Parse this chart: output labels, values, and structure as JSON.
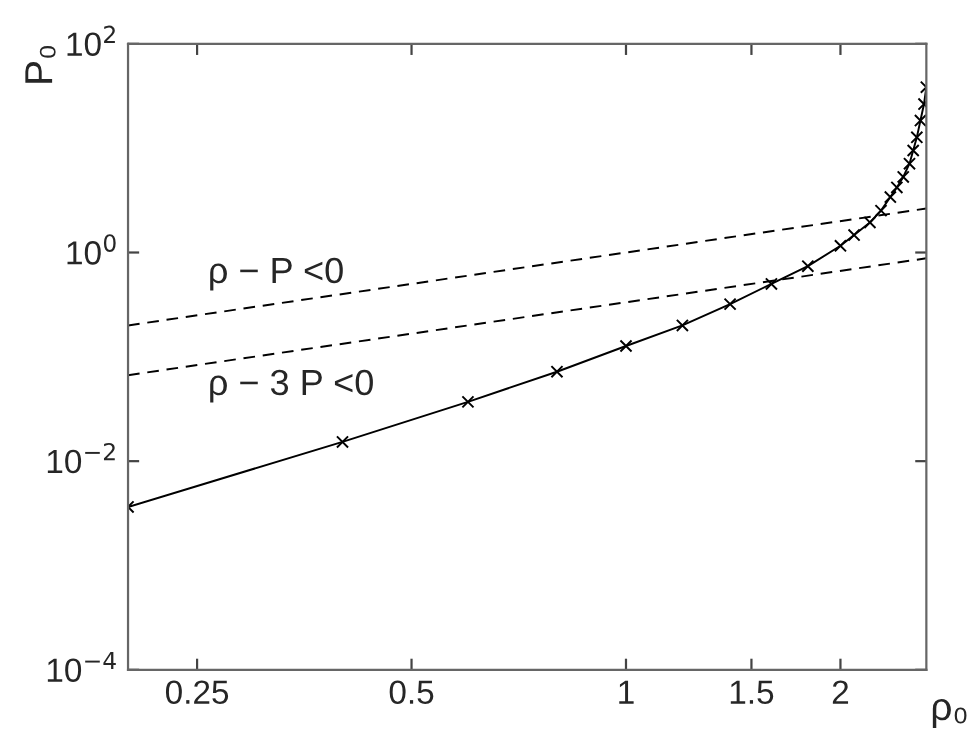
{
  "chart_data": {
    "type": "line",
    "xlabel": "ρ₀",
    "ylabel": "P₀",
    "log": "xy",
    "grid": false,
    "xlim": [
      0.2,
      2.64
    ],
    "ylim": [
      0.0001,
      100
    ],
    "xticks": [
      0.25,
      0.5,
      1,
      1.5,
      2
    ],
    "yticks": [
      {
        "value": 0.0001,
        "label": "10$^{−4}$"
      },
      {
        "value": 0.01,
        "label": "10$^{−2}$"
      },
      {
        "value": 1,
        "label": "10$^{0}$"
      },
      {
        "value": 100,
        "label": "10$^{2}$"
      }
    ],
    "series": [
      {
        "color": "#000000",
        "marker": "cross",
        "line_style": "solid",
        "x": [
          0.2,
          0.4,
          0.6,
          0.8,
          1.0,
          1.2,
          1.4,
          1.6,
          1.8,
          2.0,
          2.09,
          2.2,
          2.28,
          2.35,
          2.4,
          2.45,
          2.5,
          2.53,
          2.56,
          2.59,
          2.62,
          2.64
        ],
        "values": [
          0.00364,
          0.0153,
          0.037,
          0.072,
          0.127,
          0.2,
          0.32,
          0.5,
          0.74,
          1.16,
          1.47,
          1.94,
          2.52,
          3.4,
          4.2,
          5.3,
          7.1,
          9.5,
          12.7,
          18.4,
          26.5,
          38.4
        ]
      },
      {
        "color": "#000000",
        "marker": "none",
        "line_style": "dashed",
        "x": [
          0.2,
          2.64
        ],
        "values": [
          0.2,
          2.64
        ]
      },
      {
        "color": "#000000",
        "marker": "none",
        "line_style": "dashed",
        "x": [
          0.2,
          2.64
        ],
        "values": [
          0.0667,
          0.88
        ]
      }
    ],
    "annotations": [
      "ρ − P <0",
      "ρ − 3 P <0"
    ]
  }
}
